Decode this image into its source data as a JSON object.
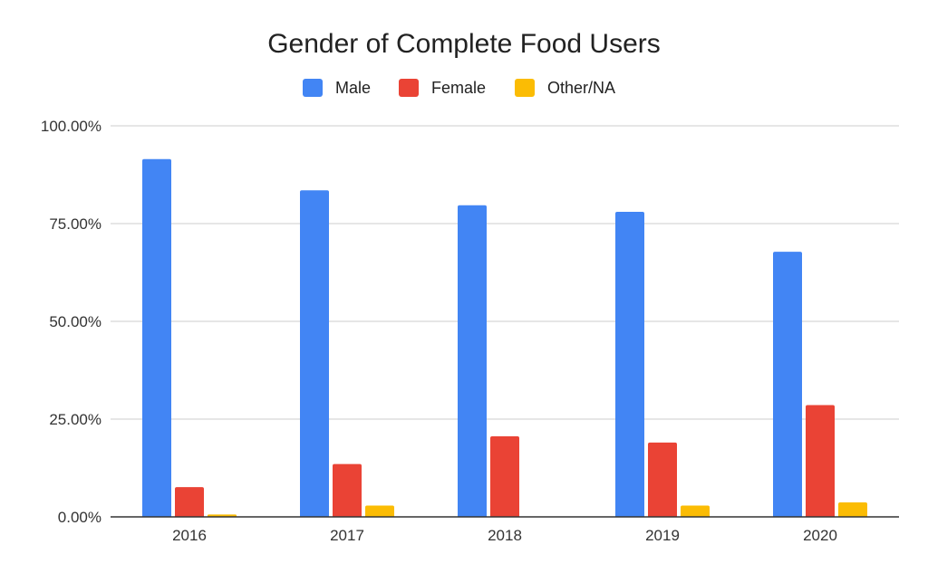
{
  "chart_data": {
    "type": "bar",
    "title": "Gender of Complete Food Users",
    "xlabel": "",
    "ylabel": "",
    "categories": [
      "2016",
      "2017",
      "2018",
      "2019",
      "2020"
    ],
    "series": [
      {
        "name": "Male",
        "color": "#4285f4",
        "values": [
          91.5,
          83.5,
          79.7,
          78.0,
          67.8
        ]
      },
      {
        "name": "Female",
        "color": "#ea4335",
        "values": [
          7.6,
          13.5,
          20.6,
          19.0,
          28.6
        ]
      },
      {
        "name": "Other/NA",
        "color": "#fbbc04",
        "values": [
          0.6,
          2.9,
          0.0,
          2.9,
          3.7
        ]
      }
    ],
    "ylim": [
      0,
      100
    ],
    "yticks": [
      "0.00%",
      "25.00%",
      "50.00%",
      "75.00%",
      "100.00%"
    ],
    "grid": true,
    "legend_position": "top-center"
  }
}
